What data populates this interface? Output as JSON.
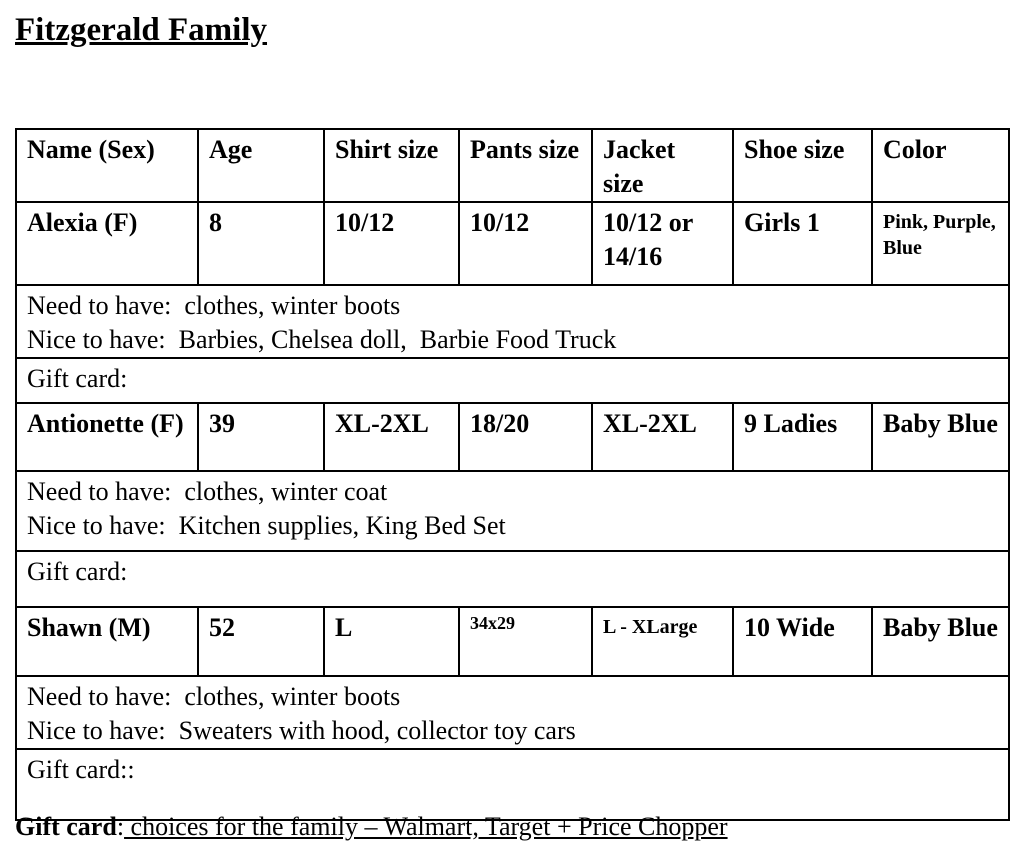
{
  "title": "Fitzgerald Family",
  "table": {
    "headers": [
      "Name (Sex)",
      "Age",
      "Shirt size",
      "Pants size",
      "Jacket size",
      "Shoe size",
      "Color"
    ],
    "members": [
      {
        "cells": [
          "Alexia (F)",
          "8",
          "10/12",
          "10/12",
          "10/12 or 14/16",
          "Girls 1",
          "Pink, Purple, Blue"
        ],
        "need": "Need to have:  clothes, winter boots",
        "nice": "Nice to have:  Barbies, Chelsea doll,  Barbie Food Truck",
        "gift": "Gift card:"
      },
      {
        "cells": [
          "Antionette (F)",
          "39",
          "XL-2XL",
          "18/20",
          "XL-2XL",
          "9 Ladies",
          "Baby Blue"
        ],
        "need": "Need to have:  clothes, winter coat",
        "nice": "Nice to have:  Kitchen supplies, King Bed Set",
        "gift": "Gift card:"
      },
      {
        "cells": [
          "Shawn (M)",
          "52",
          "L",
          "34x29",
          "L - XLarge",
          "10 Wide",
          "Baby Blue"
        ],
        "need": "Need to have:  clothes, winter boots",
        "nice": "Nice to have:  Sweaters with hood, collector toy cars",
        "gift": "Gift card::"
      }
    ]
  },
  "footer": {
    "label": "Gift card",
    "colon": ":",
    "text": " choices for the family – Walmart, Target + Price Chopper"
  }
}
